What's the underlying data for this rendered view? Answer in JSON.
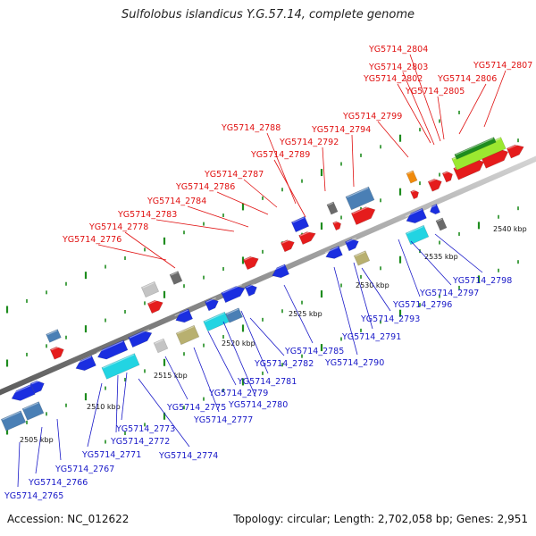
{
  "title": "Sulfolobus islandicus Y.G.57.14, complete genome",
  "footer": {
    "accession": "Accession: NC_012622",
    "summary": "Topology: circular; Length: 2,702,058 bp; Genes: 2,951"
  },
  "colors": {
    "red": "#e51c1c",
    "blue": "#1a2ee0",
    "steel": "#4a7fb5",
    "cyan": "#22d4e2",
    "khaki": "#b8b070",
    "lightgray": "#c4c4c4",
    "darkgray": "#6a6a6a",
    "orange": "#f08a0c",
    "lime": "#9be830",
    "green": "#1e8c1e",
    "label_red": "#e01010",
    "label_blue": "#1818c8"
  },
  "kbp_labels": [
    "2505 kbp",
    "2510 kbp",
    "2515 kbp",
    "2520 kbp",
    "2525 kbp",
    "2530 kbp",
    "2535 kbp",
    "2540 kbp"
  ],
  "top_labels": [
    "YG5714_2776",
    "YG5714_2778",
    "YG5714_2783",
    "YG5714_2784",
    "YG5714_2786",
    "YG5714_2787",
    "YG5714_2789",
    "YG5714_2788",
    "YG5714_2792",
    "YG5714_2794",
    "YG5714_2799",
    "YG5714_2802",
    "YG5714_2803",
    "YG5714_2804",
    "YG5714_2805",
    "YG5714_2806",
    "YG5714_2807"
  ],
  "bottom_labels": [
    "YG5714_2765",
    "YG5714_2766",
    "YG5714_2767",
    "YG5714_2771",
    "YG5714_2772",
    "YG5714_2773",
    "YG5714_2774",
    "YG5714_2775",
    "YG5714_2777",
    "YG5714_2779",
    "YG5714_2780",
    "YG5714_2781",
    "YG5714_2782",
    "YG5714_2785",
    "YG5714_2790",
    "YG5714_2791",
    "YG5714_2793",
    "YG5714_2796",
    "YG5714_2797",
    "YG5714_2798"
  ]
}
